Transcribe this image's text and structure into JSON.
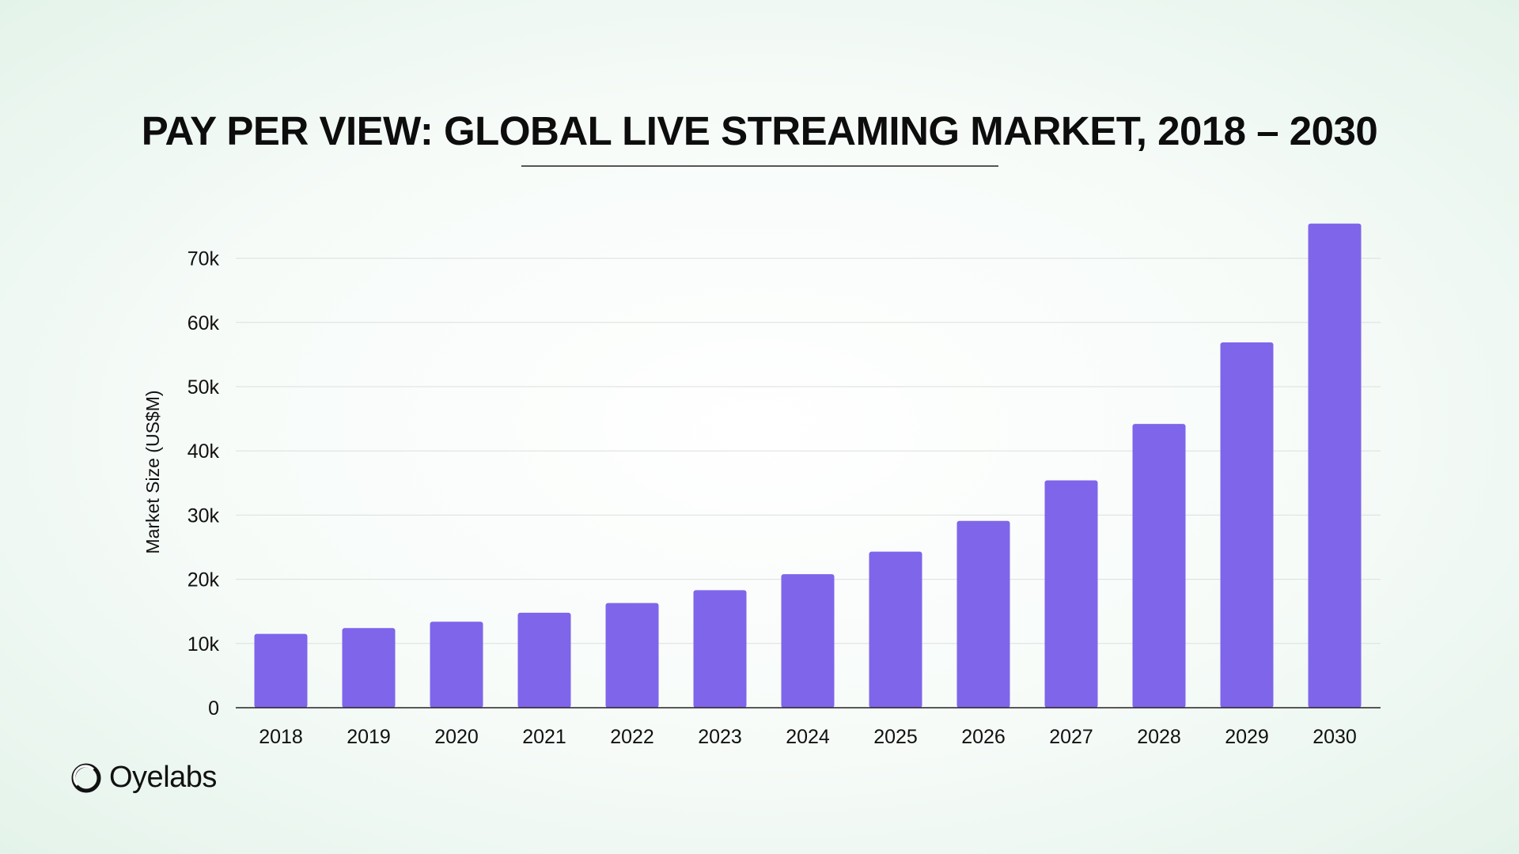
{
  "chart_data": {
    "type": "bar",
    "title": "PAY PER VIEW: GLOBAL LIVE STREAMING MARKET, 2018 – 2030",
    "xlabel": "",
    "ylabel": "Market Size (US$M)",
    "categories": [
      "2018",
      "2019",
      "2020",
      "2021",
      "2022",
      "2023",
      "2024",
      "2025",
      "2026",
      "2027",
      "2028",
      "2029",
      "2030"
    ],
    "values": [
      11500,
      12400,
      13400,
      14800,
      16300,
      18300,
      20800,
      24300,
      29100,
      35400,
      44200,
      56900,
      75400
    ],
    "ylim": [
      0,
      75400
    ],
    "yticks": [
      0,
      10000,
      20000,
      30000,
      40000,
      50000,
      60000,
      70000
    ],
    "ytick_labels": [
      "0",
      "10k",
      "20k",
      "30k",
      "40k",
      "50k",
      "60k",
      "70k"
    ],
    "grid": true,
    "bar_color": "#7f65ea"
  },
  "brand": {
    "name": "Oyelabs"
  }
}
